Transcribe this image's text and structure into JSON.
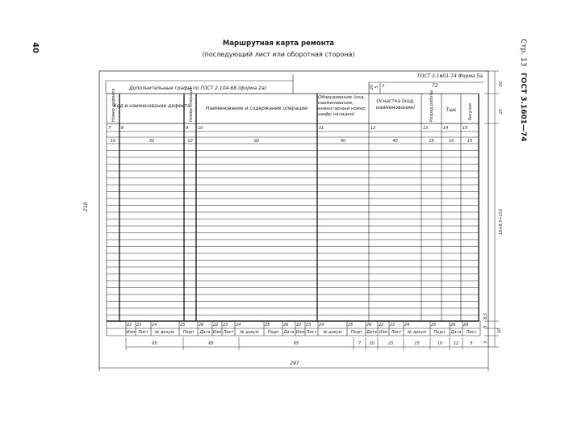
{
  "page_number": "40",
  "title": "Маршрутная карта ремонта",
  "subtitle": "(последующий лист или оборотная сторона)",
  "running_head": {
    "page": "Стр. 13",
    "standard": "ГОСТ 3.1601—74"
  },
  "form_label": "ГОСТ 3.1601-74  Форма 5а",
  "additional_columns": "Дополнительные графы по ГОСТ 2.104-68 (форма 2а)",
  "corner_box": {
    "col": "3",
    "width": "72",
    "h1": "20",
    "h2": "5"
  },
  "columns": [
    {
      "header": "Номер дефекта",
      "num": "7",
      "width": "10"
    },
    {
      "header": "Код и наименование дефекта",
      "num": "8",
      "width": "50"
    },
    {
      "header": "Номер операции",
      "num": "9",
      "width": "10"
    },
    {
      "header": "Наименование и содержание операции",
      "num": "10",
      "width": "92"
    },
    {
      "header": "Оборудование (код, наименование, инвентарный номер, шифр наладки)",
      "num": "11",
      "width": "40"
    },
    {
      "header": "Оснастка (код, наименование)",
      "num": "12",
      "width": "40"
    },
    {
      "header": "Разряд работы",
      "num": "13",
      "width": "15"
    },
    {
      "header": "Тшк",
      "num": "14",
      "width": "15"
    },
    {
      "header": "Рисунок",
      "num": "15",
      "width": "15"
    }
  ],
  "stamp": {
    "nums": [
      "22",
      "23",
      "24",
      "25",
      "26",
      "22",
      "23",
      "24",
      "25",
      "26",
      "22",
      "23",
      "24",
      "25",
      "26",
      "22",
      "23",
      "24",
      "25",
      "26",
      "28"
    ],
    "labels": [
      "Изм",
      "Лист",
      "№ докум.",
      "Подп",
      "Дата",
      "Изм",
      "Лист",
      "№ докум",
      "Подп",
      "Дата",
      "Изм",
      "Лист",
      "№ докум",
      "Подп",
      "Дата",
      "Изм",
      "Лист",
      "№ докум",
      "Подп.",
      "Дата",
      "Лист"
    ]
  },
  "bottom_dims": [
    "65",
    "65",
    "65",
    "7",
    "10",
    "23",
    "15",
    "10",
    "12",
    "5"
  ],
  "total_width": "297",
  "total_height": "210",
  "right_dims": [
    "20",
    "22",
    "18×8,5=153",
    "8,5",
    "5",
    "10",
    "5"
  ]
}
